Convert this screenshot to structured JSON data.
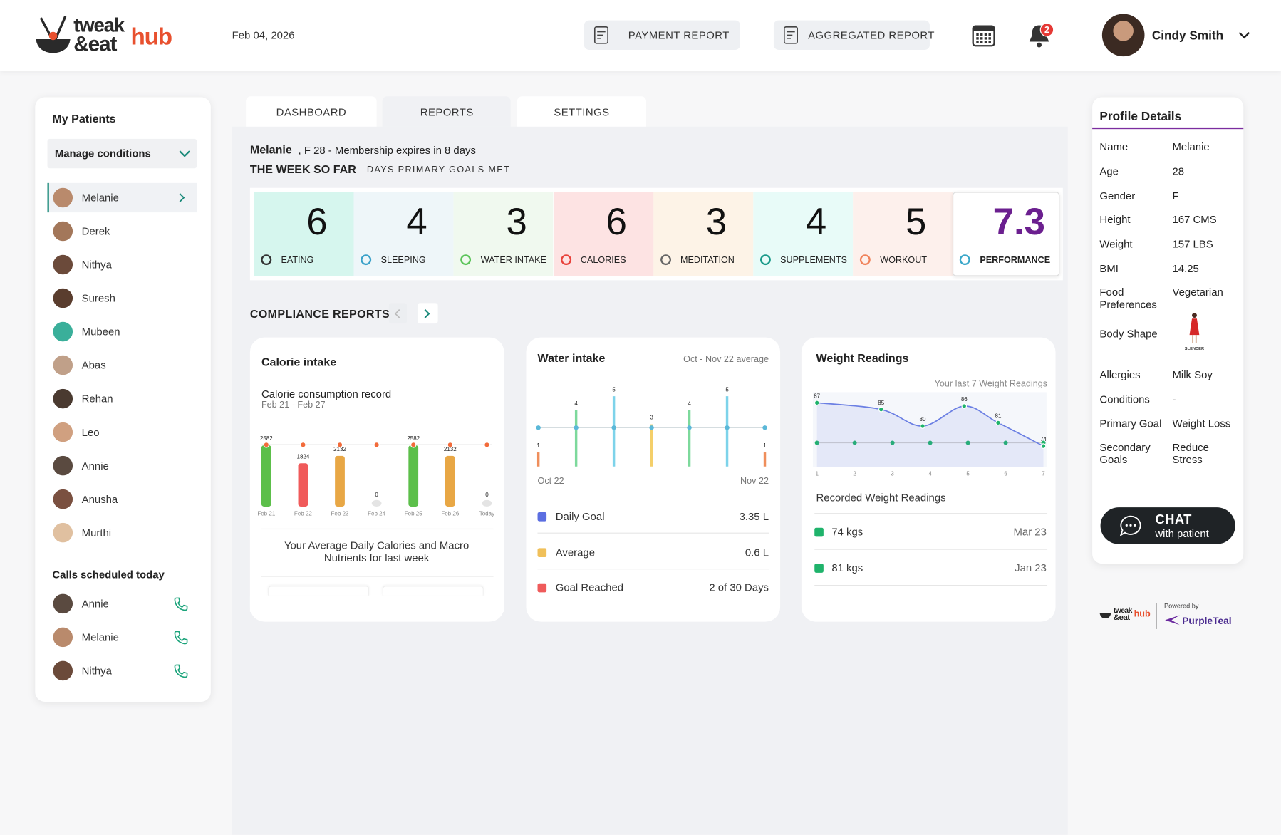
{
  "header": {
    "logo": {
      "top": "tweak",
      "bottom": "&eat",
      "accent": "hub"
    },
    "date": "Feb 04, 2026",
    "buttons": [
      "PAYMENT REPORT",
      "AGGREGATED REPORT"
    ],
    "notifications": 2,
    "user": "Cindy Smith"
  },
  "sidebar": {
    "title": "My Patients",
    "filter": "Manage conditions",
    "patients": [
      "Melanie",
      "Derek",
      "Nithya",
      "Suresh",
      "Mubeen",
      "Abas",
      "Rehan",
      "Leo",
      "Annie",
      "Anusha",
      "Murthi"
    ],
    "calls_title": "Calls scheduled today",
    "calls": [
      "Annie",
      "Melanie",
      "Nithya"
    ]
  },
  "tabs": [
    "DASHBOARD",
    "REPORTS",
    "SETTINGS"
  ],
  "patient": {
    "name": "Melanie",
    "info": ", F 28 - Membership expires in 8 days",
    "week_title": "THE WEEK SO FAR",
    "week_subtitle": "DAYS PRIMARY GOALS MET"
  },
  "stats": [
    {
      "label": "EATING",
      "value": 6,
      "color": "#d6f6ee",
      "icon": "#333333"
    },
    {
      "label": "SLEEPING",
      "value": 4,
      "color": "#eef6f9",
      "icon": "#3aa1c9"
    },
    {
      "label": "WATER INTAKE",
      "value": 3,
      "color": "#f0f9ef",
      "icon": "#5cc45a"
    },
    {
      "label": "CALORIES",
      "value": 6,
      "color": "#fde3e3",
      "icon": "#e8423b"
    },
    {
      "label": "MEDITATION",
      "value": 3,
      "color": "#fdf3e7",
      "icon": "#666666"
    },
    {
      "label": "SUPPLEMENTS",
      "value": 4,
      "color": "#e8fbf8",
      "icon": "#1a9a8a"
    },
    {
      "label": "WORKOUT",
      "value": 5,
      "color": "#fdf0ec",
      "icon": "#f0825a"
    },
    {
      "label": "PERFORMANCE",
      "value": 7.3,
      "color": "#ffffff",
      "icon": "#3aa7c9"
    }
  ],
  "compliance_title": "COMPLIANCE REPORTS",
  "calorie": {
    "title": "Calorie intake",
    "subtitle": "Calorie consumption record",
    "range": "Feb 21 - Feb 27",
    "categories": [
      "Feb 21",
      "Feb 22",
      "Feb 23",
      "Feb 24",
      "Feb 25",
      "Feb 26",
      "Today"
    ],
    "values": [
      2582,
      1824,
      2132,
      0,
      2582,
      2132,
      0
    ],
    "colors": [
      "#5cbf4a",
      "#f05a5a",
      "#e8a745",
      "#dddddd",
      "#5cbf4a",
      "#e8a745",
      "#dddddd"
    ],
    "footer": "Your Average Daily Calories and Macro Nutrients for last week"
  },
  "water": {
    "title": "Water intake",
    "subtitle": "Oct - Nov 22 average",
    "values": [
      1,
      4,
      5,
      3,
      4,
      5,
      1
    ],
    "colors": [
      "#ef8e5b",
      "#7dd99c",
      "#7dd3ea",
      "#f4cf6a",
      "#7dd99c",
      "#7dd3ea",
      "#ef8e5b"
    ],
    "start": "Oct 22",
    "end": "Nov 22",
    "legend": [
      {
        "name": "Daily Goal",
        "value": "3.35 L",
        "color": "#5b6ee1"
      },
      {
        "name": "Average",
        "value": "0.6 L",
        "color": "#f0c05a"
      },
      {
        "name": "Goal Reached",
        "value": "2 of 30 Days",
        "color": "#ef5b5b"
      }
    ]
  },
  "weight": {
    "title": "Weight Readings",
    "subtitle": "Your last 7 Weight Readings",
    "x": [
      1,
      2.7,
      3.8,
      4.9,
      5.8,
      7
    ],
    "values": [
      87,
      85,
      80,
      86,
      81,
      74
    ],
    "xticks": [
      1,
      2,
      3,
      4,
      5,
      6,
      7
    ],
    "recorded_title": "Recorded Weight Readings",
    "recorded": [
      {
        "value": "74 kgs",
        "date": "Mar 23"
      },
      {
        "value": "81 kgs",
        "date": "Jan 23"
      }
    ]
  },
  "profile": {
    "title": "Profile Details",
    "rows": [
      {
        "label": "Name",
        "value": "Melanie"
      },
      {
        "label": "Age",
        "value": 28
      },
      {
        "label": "Gender",
        "value": "F"
      },
      {
        "label": "Height",
        "value": "167 CMS"
      },
      {
        "label": "Weight",
        "value": "157 LBS"
      },
      {
        "label": "BMI",
        "value": 14.25
      },
      {
        "label": "Food Preferences",
        "value": "Vegetarian"
      }
    ],
    "body_shape": {
      "label": "Body Shape",
      "value": "SLENDER"
    },
    "rows_after": [
      {
        "label": "Allergies",
        "value": "Milk Soy"
      },
      {
        "label": "Conditions",
        "value": "-"
      },
      {
        "label": "Primary Goal",
        "value": "Weight Loss"
      },
      {
        "label": "Secondary Goals",
        "value": "Reduce Stress"
      }
    ],
    "chat": {
      "title": "CHAT",
      "subtitle": "with patient"
    }
  },
  "footer": {
    "powered": "Powered by",
    "brand": "PurpleTeal"
  }
}
